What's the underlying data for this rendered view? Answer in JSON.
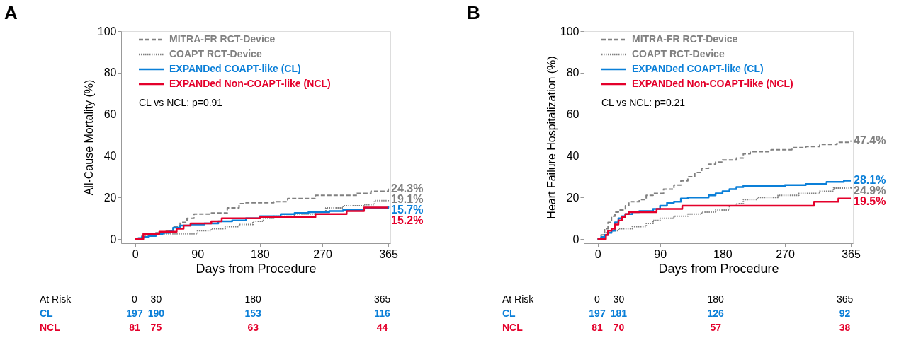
{
  "chart_data": [
    {
      "type": "step",
      "title": "A",
      "xlabel": "Days from Procedure",
      "ylabel": "All-Cause Mortality (%)",
      "xlim": [
        -20,
        368
      ],
      "ylim": [
        -2,
        100
      ],
      "xticks": [
        0,
        90,
        180,
        270,
        365
      ],
      "yticks": [
        0,
        20,
        40,
        60,
        80,
        100
      ],
      "legend": "top left",
      "series": [
        {
          "name": "MITRA-FR RCT-Device",
          "color": "#808080",
          "line_style": "dashed",
          "x": [
            0,
            10,
            30,
            45,
            55,
            65,
            75,
            85,
            110,
            133,
            150,
            160,
            200,
            220,
            260,
            320,
            340,
            365
          ],
          "values": [
            0,
            2,
            3,
            4,
            6,
            8,
            10,
            12,
            12.5,
            15,
            17,
            17.5,
            18,
            19.5,
            21,
            22,
            23,
            24.3
          ]
        },
        {
          "name": "COAPT RCT-Device",
          "color": "#808080",
          "line_style": "dotted",
          "x": [
            0,
            10,
            20,
            30,
            90,
            110,
            130,
            150,
            170,
            185,
            200,
            230,
            260,
            275,
            300,
            330,
            345,
            365
          ],
          "values": [
            0,
            1.5,
            2,
            2.5,
            4,
            5,
            6,
            7,
            8.5,
            10,
            11,
            12,
            13,
            15,
            16,
            16.5,
            18.5,
            19.1
          ]
        },
        {
          "name": "EXPANDed COAPT-like (CL)",
          "color": "#0a7fd8",
          "line_style": "solid",
          "x": [
            0,
            5,
            10,
            20,
            30,
            40,
            50,
            55,
            65,
            80,
            100,
            120,
            140,
            160,
            180,
            210,
            230,
            250,
            280,
            300,
            330,
            365
          ],
          "values": [
            0,
            0.5,
            1,
            1.5,
            2.5,
            3,
            4,
            5.5,
            6.5,
            7,
            7.5,
            8.5,
            9,
            10,
            11,
            12,
            12.5,
            13,
            13.5,
            14,
            15,
            15.7
          ]
        },
        {
          "name": "EXPANDed Non-COAPT-like (NCL)",
          "color": "#e4002b",
          "line_style": "solid",
          "x": [
            0,
            12,
            35,
            60,
            70,
            80,
            110,
            125,
            180,
            260,
            305,
            330,
            365
          ],
          "values": [
            0,
            2.5,
            3.5,
            5,
            6.5,
            7.5,
            8.5,
            10,
            10.5,
            12,
            13.5,
            15.2,
            15.2
          ]
        }
      ],
      "annotations": [
        "CL vs NCL: p=0.91",
        "24.3%",
        "19.1%",
        "15.7%",
        "15.2%",
        "At Risk",
        "0",
        "30",
        "180",
        "365",
        "CL",
        "197",
        "190",
        "153",
        "116",
        "NCL",
        "81",
        "75",
        "63",
        "44"
      ]
    },
    {
      "type": "step",
      "title": "B",
      "xlabel": "Days from Procedure",
      "ylabel": "Heart Failure Hospitalization (%)",
      "xlim": [
        -20,
        368
      ],
      "ylim": [
        -2,
        100
      ],
      "xticks": [
        0,
        90,
        180,
        270,
        365
      ],
      "yticks": [
        0,
        20,
        40,
        60,
        80,
        100
      ],
      "legend": "top left",
      "series": [
        {
          "name": "MITRA-FR RCT-Device",
          "color": "#808080",
          "line_style": "dashed",
          "x": [
            0,
            5,
            10,
            15,
            20,
            25,
            30,
            40,
            45,
            60,
            70,
            80,
            95,
            110,
            120,
            130,
            140,
            150,
            160,
            170,
            180,
            200,
            210,
            220,
            250,
            280,
            300,
            320,
            345,
            365
          ],
          "values": [
            0,
            2,
            5,
            8,
            11,
            13,
            14,
            16,
            18,
            19,
            21,
            22,
            24,
            26,
            28,
            30,
            32,
            34,
            36,
            37,
            38,
            39,
            41,
            42,
            43,
            44,
            44.5,
            45.5,
            46.5,
            47.4
          ]
        },
        {
          "name": "COAPT RCT-Device",
          "color": "#808080",
          "line_style": "dotted",
          "x": [
            0,
            10,
            20,
            30,
            50,
            70,
            80,
            90,
            110,
            130,
            150,
            170,
            190,
            200,
            210,
            230,
            260,
            290,
            320,
            340,
            365
          ],
          "values": [
            0,
            3,
            4,
            5,
            6,
            7.5,
            9,
            10,
            11,
            12,
            13,
            14,
            16,
            17,
            19,
            20,
            21,
            22,
            23,
            24.5,
            24.9
          ]
        },
        {
          "name": "EXPANDed COAPT-like (CL)",
          "color": "#0a7fd8",
          "line_style": "solid",
          "x": [
            0,
            5,
            10,
            15,
            20,
            25,
            30,
            35,
            40,
            50,
            60,
            80,
            90,
            100,
            110,
            120,
            130,
            160,
            170,
            180,
            190,
            200,
            210,
            270,
            300,
            330,
            355,
            365
          ],
          "values": [
            0,
            1,
            2,
            3,
            4,
            8,
            10,
            11,
            12,
            13,
            13.5,
            14.5,
            16,
            17.5,
            18,
            19.5,
            20,
            21,
            22,
            23,
            24,
            25,
            25.5,
            26,
            26.5,
            27.5,
            28.1,
            28.1
          ]
        },
        {
          "name": "EXPANDed Non-COAPT-like (NCL)",
          "color": "#e4002b",
          "line_style": "solid",
          "x": [
            0,
            12,
            15,
            20,
            25,
            30,
            35,
            40,
            45,
            85,
            122,
            312,
            347,
            365
          ],
          "values": [
            0,
            2,
            4,
            5,
            7,
            9,
            10.5,
            12,
            13,
            14.5,
            16,
            18,
            19.5,
            19.5
          ]
        }
      ],
      "annotations": [
        "CL vs NCL: p=0.21",
        "47.4%",
        "24.9%",
        "28.1%",
        "19.5%",
        "At Risk",
        "0",
        "30",
        "180",
        "365",
        "CL",
        "197",
        "181",
        "126",
        "92",
        "NCL",
        "81",
        "70",
        "57",
        "38"
      ]
    }
  ]
}
